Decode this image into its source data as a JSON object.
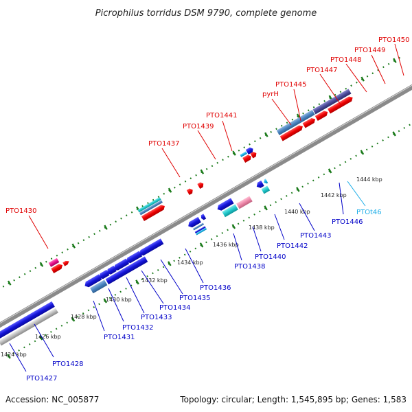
{
  "title": "Picrophilus torridus DSM 9790, complete genome",
  "footer": {
    "accession": "Accession: NC_005877",
    "summary": "Topology: circular; Length: 1,545,895 bp; Genes: 1,583"
  },
  "scale_labels": [
    "1424 kbp",
    "1426 kbp",
    "1428 kbp",
    "1430 kbp",
    "1432 kbp",
    "1434 kbp",
    "1436 kbp",
    "1438 kbp",
    "1440 kbp",
    "1442 kbp",
    "1444 kbp"
  ],
  "top_gene_labels": [
    "PTO1430",
    "PTO1437",
    "PTO1439",
    "PTO1441",
    "pyrH",
    "PTO1445",
    "PTO1447",
    "PTO1448",
    "PTO1449",
    "PTO1450"
  ],
  "bottom_gene_labels": [
    "PTO1427",
    "PTO1428",
    "PTO1431",
    "PTO1432",
    "PTO1433",
    "PTO1434",
    "PTO1435",
    "PTO1436",
    "PTO1438",
    "PTO1440",
    "PTO1442",
    "PTO1443",
    "PTO1446"
  ],
  "rna_label": "PTOt46",
  "colors": {
    "forward_cds": "#ee1111",
    "reverse_cds": "#1414d8",
    "gene_bar_blue": "#4a84c0",
    "gene_bar_pink": "#ee88aa",
    "rna": "#16b4e8",
    "cyan_bar": "#20c8cc",
    "magenta": "#e8108c",
    "grey": "#aaaaaa",
    "navy": "#4a4a98",
    "tick": "#1a7a1a",
    "top_label": "#e00000",
    "bottom_label": "#0000c8",
    "backbone": "#888888"
  }
}
